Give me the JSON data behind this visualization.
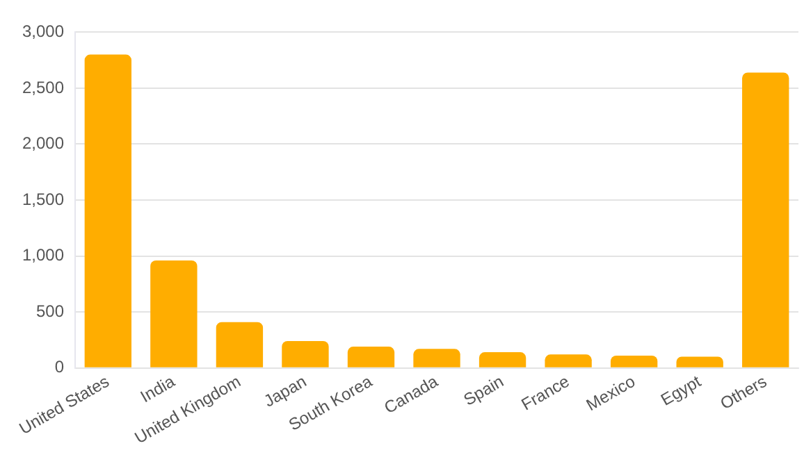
{
  "chart_data": {
    "type": "bar",
    "categories": [
      "United States",
      "India",
      "United Kingdom",
      "Japan",
      "South Korea",
      "Canada",
      "Spain",
      "France",
      "Mexico",
      "Egypt",
      "Others"
    ],
    "values": [
      2800,
      960,
      410,
      240,
      190,
      170,
      140,
      120,
      110,
      100,
      2640
    ],
    "color": "#ffad00",
    "ylim": [
      0,
      3000
    ],
    "yticks": [
      {
        "value": 0,
        "label": "0"
      },
      {
        "value": 500,
        "label": "500"
      },
      {
        "value": 1000,
        "label": "1,000"
      },
      {
        "value": 1500,
        "label": "1,500"
      },
      {
        "value": 2000,
        "label": "2,000"
      },
      {
        "value": 2500,
        "label": "2,500"
      },
      {
        "value": 3000,
        "label": "3,000"
      }
    ],
    "grid": "y"
  }
}
